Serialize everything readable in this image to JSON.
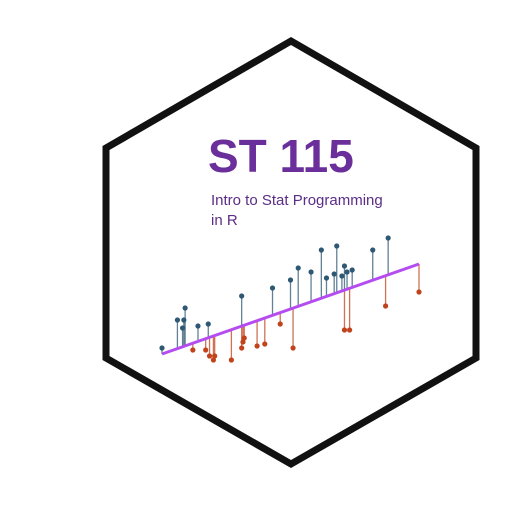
{
  "logo": {
    "title": "ST 115",
    "subtitle_line1": "Intro to Stat Programming",
    "subtitle_line2": "in R"
  },
  "colors": {
    "background": "#ffffff",
    "hexagon_stroke": "#111111",
    "title": "#6a2f9a",
    "subtitle": "#5b2d86",
    "regression_line": "#b44cf0",
    "positive_residual": "#2e5873",
    "negative_residual": "#c0431b"
  },
  "chart_data": {
    "type": "scatter",
    "xlim": [
      0,
      100
    ],
    "ylim": [
      0,
      100
    ],
    "regression_line": {
      "x0": 0,
      "y0": 0,
      "x1": 100,
      "y1": 45
    },
    "points_above": [
      {
        "x": 0,
        "y": 3
      },
      {
        "x": 6,
        "y": 17
      },
      {
        "x": 8,
        "y": 13
      },
      {
        "x": 8.5,
        "y": 17
      },
      {
        "x": 9,
        "y": 23
      },
      {
        "x": 14,
        "y": 14
      },
      {
        "x": 18,
        "y": 15
      },
      {
        "x": 31,
        "y": 29
      },
      {
        "x": 43,
        "y": 33
      },
      {
        "x": 50,
        "y": 37
      },
      {
        "x": 53,
        "y": 43
      },
      {
        "x": 58,
        "y": 41
      },
      {
        "x": 62,
        "y": 52
      },
      {
        "x": 64,
        "y": 38
      },
      {
        "x": 67,
        "y": 40
      },
      {
        "x": 68,
        "y": 54
      },
      {
        "x": 70,
        "y": 39
      },
      {
        "x": 71,
        "y": 44
      },
      {
        "x": 72,
        "y": 41
      },
      {
        "x": 74,
        "y": 42
      },
      {
        "x": 82,
        "y": 52
      },
      {
        "x": 88,
        "y": 58
      }
    ],
    "points_below": [
      {
        "x": 12,
        "y": 2
      },
      {
        "x": 17,
        "y": 2
      },
      {
        "x": 18.5,
        "y": -1
      },
      {
        "x": 20,
        "y": -3
      },
      {
        "x": 20.5,
        "y": -1
      },
      {
        "x": 27,
        "y": -3
      },
      {
        "x": 31,
        "y": 3
      },
      {
        "x": 31.5,
        "y": 6
      },
      {
        "x": 32,
        "y": 8
      },
      {
        "x": 37,
        "y": 4
      },
      {
        "x": 40,
        "y": 5
      },
      {
        "x": 46,
        "y": 15
      },
      {
        "x": 51,
        "y": 3
      },
      {
        "x": 71,
        "y": 12
      },
      {
        "x": 73,
        "y": 12
      },
      {
        "x": 87,
        "y": 24
      },
      {
        "x": 100,
        "y": 31
      }
    ]
  }
}
